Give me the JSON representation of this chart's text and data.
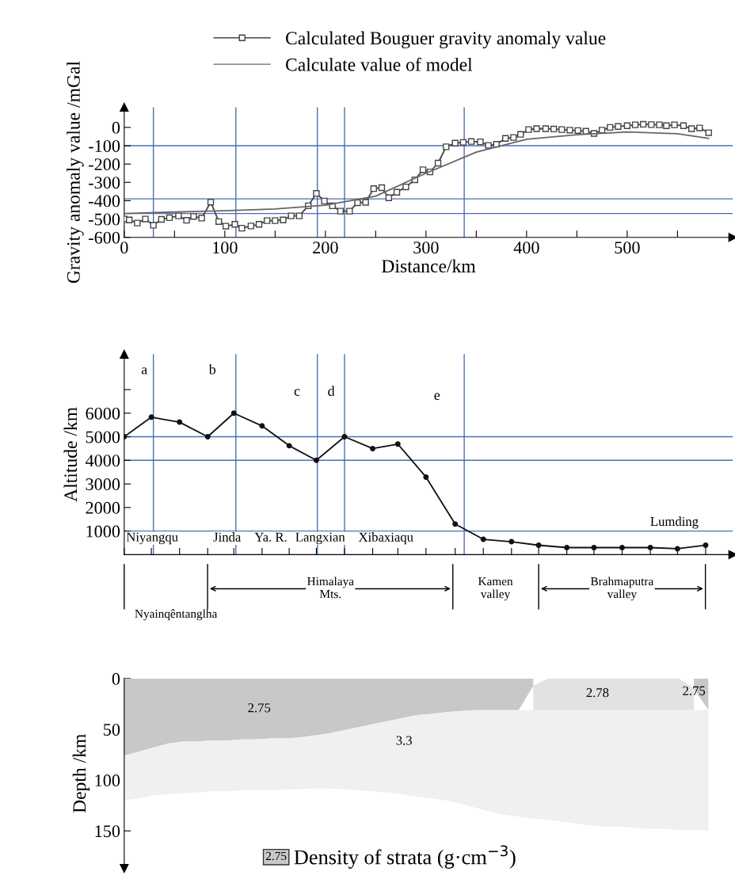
{
  "chart_data": [
    {
      "type": "line",
      "xlabel": "Distance/km",
      "ylabel": "Gravity anomaly value /mGal",
      "xlim": [
        0,
        605
      ],
      "ylim": [
        -600,
        110
      ],
      "xticks": [
        0,
        {
          "value": 50,
          "label": null
        },
        100,
        {
          "value": 150,
          "label": null
        },
        200,
        {
          "value": 250,
          "label": null
        },
        300,
        {
          "value": 350,
          "label": null
        },
        400,
        {
          "value": 450,
          "label": null
        },
        500,
        {
          "value": 550,
          "label": null
        }
      ],
      "yticks": [
        0,
        -100,
        -200,
        -300,
        -400,
        -500,
        -600
      ],
      "legend": "top",
      "series": [
        {
          "name": "Calculated Bouguer gravity anomaly value",
          "color": "#444444",
          "marker": "square",
          "x": [
            0,
            5,
            13,
            21,
            29,
            37,
            45,
            54,
            62,
            69,
            77,
            86,
            94,
            101,
            110,
            117,
            126,
            134,
            142,
            150,
            158,
            166,
            174,
            183,
            191,
            199,
            207,
            215,
            224,
            232,
            240,
            248,
            256,
            263,
            271,
            280,
            289,
            297,
            304,
            312,
            320,
            329,
            337,
            345,
            354,
            362,
            370,
            379,
            387,
            394,
            402,
            410,
            419,
            427,
            435,
            443,
            451,
            459,
            467,
            475,
            483,
            491,
            500,
            508,
            516,
            524,
            532,
            539,
            547,
            556,
            564,
            572,
            581
          ],
          "values": [
            -500,
            -505,
            -522,
            -500,
            -534,
            -502,
            -493,
            -483,
            -507,
            -486,
            -495,
            -408,
            -514,
            -539,
            -529,
            -550,
            -538,
            -529,
            -509,
            -509,
            -505,
            -483,
            -483,
            -428,
            -360,
            -402,
            -428,
            -457,
            -457,
            -411,
            -409,
            -334,
            -329,
            -384,
            -354,
            -325,
            -286,
            -231,
            -243,
            -195,
            -106,
            -86,
            -82,
            -77,
            -79,
            -98,
            -92,
            -60,
            -55,
            -38,
            -12,
            -7,
            -7,
            -9,
            -12,
            -15,
            -17,
            -21,
            -33,
            -15,
            0,
            5,
            9,
            14,
            17,
            15,
            14,
            9,
            14,
            9,
            -7,
            -3,
            -29
          ]
        },
        {
          "name": "Calculate value of model",
          "color": "#666666",
          "marker": "none",
          "x": [
            0,
            50,
            100,
            150,
            200,
            250,
            300,
            350,
            400,
            450,
            500,
            550,
            581
          ],
          "values": [
            -470,
            -462,
            -455,
            -445,
            -425,
            -375,
            -250,
            -135,
            -65,
            -40,
            -25,
            -35,
            -60
          ]
        }
      ],
      "ref_lines": [
        {
          "axis": "y",
          "value": -100,
          "color": "#4a6fb5"
        },
        {
          "axis": "y",
          "value": -390,
          "color": "#4a6fb5"
        },
        {
          "axis": "y",
          "value": -470,
          "color": "#4a6fb5"
        },
        {
          "axis": "x",
          "value": 29,
          "color": "#4a6fb5"
        },
        {
          "axis": "x",
          "value": 111,
          "color": "#4a6fb5"
        },
        {
          "axis": "x",
          "value": 192,
          "color": "#4a6fb5"
        },
        {
          "axis": "x",
          "value": 219,
          "color": "#4a6fb5"
        },
        {
          "axis": "x",
          "value": 338,
          "color": "#4a6fb5"
        }
      ]
    },
    {
      "type": "line",
      "ylabel": "Altitude /km",
      "xlim": [
        0,
        605
      ],
      "ylim": [
        0,
        8500
      ],
      "tick_labels": "y",
      "marker": "circle",
      "xticks": [
        {
          "value": 0,
          "label": null
        },
        {
          "value": 27,
          "label": null
        },
        {
          "value": 55,
          "label": null
        },
        {
          "value": 83,
          "label": null
        },
        {
          "value": 109,
          "label": null
        },
        {
          "value": 137,
          "label": null
        },
        {
          "value": 164,
          "label": null
        },
        {
          "value": 191,
          "label": null
        },
        {
          "value": 219,
          "label": null
        },
        {
          "value": 247,
          "label": null
        },
        {
          "value": 272,
          "label": null
        },
        {
          "value": 300,
          "label": null
        },
        {
          "value": 329,
          "label": null
        },
        {
          "value": 357,
          "label": null
        },
        {
          "value": 385,
          "label": null
        },
        {
          "value": 412,
          "label": null
        },
        {
          "value": 440,
          "label": null
        },
        {
          "value": 467,
          "label": null
        },
        {
          "value": 495,
          "label": null
        },
        {
          "value": 523,
          "label": null
        },
        {
          "value": 550,
          "label": null
        },
        {
          "value": 578,
          "label": null
        }
      ],
      "yticks": [
        1000,
        2000,
        3000,
        4000,
        5000,
        6000,
        {
          "value": 7000,
          "label": null
        }
      ],
      "x": [
        0,
        27,
        55,
        83,
        109,
        137,
        164,
        191,
        219,
        247,
        272,
        300,
        329,
        357,
        385,
        412,
        440,
        467,
        495,
        523,
        550,
        578
      ],
      "series": [
        {
          "color": "#111111",
          "values": [
            5000,
            5830,
            5620,
            5000,
            6000,
            5460,
            4620,
            4000,
            5000,
            4500,
            4690,
            3290,
            1300,
            650,
            550,
            400,
            300,
            300,
            300,
            300,
            250,
            400
          ]
        }
      ],
      "ref_lines": [
        {
          "axis": "y",
          "value": 5000,
          "color": "#4a6fb5"
        },
        {
          "axis": "y",
          "value": 4000,
          "color": "#4a6fb5"
        },
        {
          "axis": "y",
          "value": 1000,
          "color": "#4a6fb5"
        },
        {
          "axis": "x",
          "value": 29,
          "color": "#4a6fb5"
        },
        {
          "axis": "x",
          "value": 111,
          "color": "#4a6fb5"
        },
        {
          "axis": "x",
          "value": 192,
          "color": "#4a6fb5"
        },
        {
          "axis": "x",
          "value": 219,
          "color": "#4a6fb5"
        },
        {
          "axis": "x",
          "value": 338,
          "color": "#4a6fb5"
        }
      ],
      "annotations": [
        "a",
        "b",
        "c",
        "d",
        "e",
        "Niyangqu",
        "Jinda",
        "Ya. R.",
        "Langxian",
        "Xibaxiaqu",
        "Lumding",
        "Nyainqêntanglha",
        "Himalaya\nMts.",
        "Kamen\nvalley",
        "Brahmaputra\nvalley"
      ]
    },
    {
      "type": "area",
      "stacked": true,
      "ylabel": "Depth /km",
      "ylim": [
        187,
        0
      ],
      "tick_labels": "y",
      "yticks": [
        0,
        50,
        100,
        150
      ],
      "categories": [
        null,
        null,
        null,
        null,
        null,
        null,
        null,
        null,
        null,
        null,
        null,
        null,
        null,
        null,
        null,
        null,
        null,
        null,
        null,
        null,
        null,
        null,
        null,
        null,
        null,
        null,
        null,
        null,
        null,
        null,
        null,
        null,
        null,
        null,
        null,
        null,
        null,
        null,
        null,
        null,
        null
      ],
      "series": [
        {
          "color": "#c8c8c8",
          "values": [
            76,
            72,
            68,
            64,
            62,
            62,
            61,
            61,
            60,
            60,
            59,
            59,
            58,
            56,
            54,
            51,
            48,
            45,
            42,
            39,
            36,
            35,
            33,
            32,
            31,
            31,
            31,
            31,
            7,
            null,
            null,
            null,
            null,
            null,
            null,
            null,
            null,
            null,
            null,
            10,
            31
          ]
        },
        {
          "color": "#e2e2e2",
          "values": [
            null,
            null,
            null,
            null,
            null,
            null,
            null,
            null,
            null,
            null,
            null,
            null,
            null,
            null,
            null,
            null,
            null,
            null,
            null,
            null,
            null,
            null,
            null,
            null,
            null,
            null,
            null,
            null,
            24,
            31,
            31,
            31,
            31,
            31,
            31,
            31,
            31,
            31,
            31,
            21,
            null
          ]
        },
        {
          "color": "#f0f0f0",
          "values": [
            44,
            46,
            47,
            50,
            51,
            50,
            50,
            50,
            50,
            50,
            51,
            50,
            51,
            52,
            54,
            58,
            62,
            66,
            70,
            75,
            80,
            83,
            87,
            91,
            96,
            100,
            103,
            105,
            107,
            108,
            110,
            112,
            114,
            115,
            115,
            116,
            117,
            117,
            118,
            118,
            119
          ]
        }
      ],
      "annotations": [
        "2.75",
        "3.3",
        "2.78",
        "2.75",
        "2.75",
        "Density of strata (g·cm$^{−3}$)"
      ]
    }
  ]
}
